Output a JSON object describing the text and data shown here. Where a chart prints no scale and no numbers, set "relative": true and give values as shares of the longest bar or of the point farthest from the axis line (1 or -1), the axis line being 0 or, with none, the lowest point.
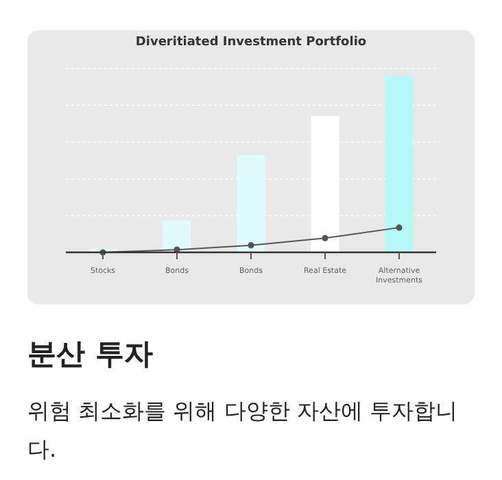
{
  "chart_data": {
    "type": "bar",
    "title": "Diveritiated Investment Portfolio",
    "categories": [
      "Stocks",
      "Bonds",
      "Bonds",
      "Real Estate",
      "Alternative Investments"
    ],
    "relative": true,
    "grid": "y",
    "series": [
      {
        "colors": [
          "#e4fbfb",
          "#e0fbfb",
          "#e0fbfc",
          "#ffffff",
          "#b8fafa"
        ],
        "values": [
          0.02,
          0.18,
          0.55,
          0.77,
          1
        ]
      },
      {
        "type": "line",
        "color": "#555555",
        "marker": "circle",
        "line_style": "solid",
        "values": [
          0,
          0.015,
          0.04,
          0.08,
          0.14
        ]
      }
    ],
    "annotations": [
      "분산 투자",
      "위험 최소화를 위해 다양한 자산에 투자합니다."
    ]
  }
}
